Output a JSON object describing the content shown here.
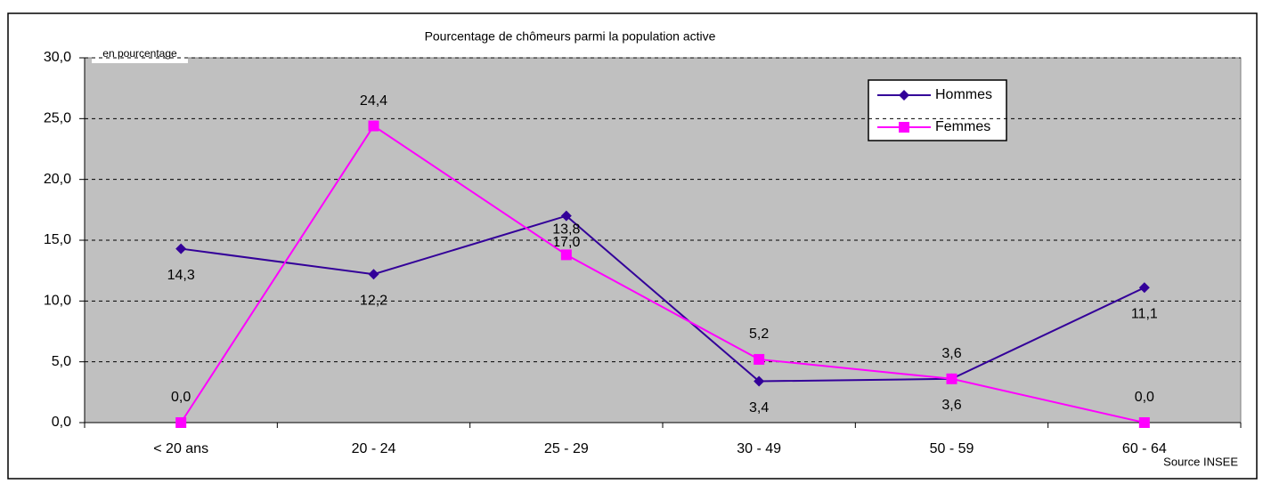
{
  "chart_data": {
    "type": "line",
    "title": "Pourcentage de chômeurs parmi la population active",
    "y_axis_label": "en pourcentage",
    "source": "Source INSEE",
    "categories": [
      "< 20 ans",
      "20 - 24",
      "25 - 29",
      "30 - 49",
      "50 - 59",
      "60 - 64"
    ],
    "series": [
      {
        "name": "Hommes",
        "color": "#330099",
        "marker": "diamond",
        "values": [
          14.3,
          12.2,
          17.0,
          3.4,
          3.6,
          11.1
        ],
        "value_labels": [
          "14,3",
          "12,2",
          "17,0",
          "3,4",
          "3,6",
          "11,1"
        ]
      },
      {
        "name": "Femmes",
        "color": "#ff00ff",
        "marker": "square",
        "values": [
          0.0,
          24.4,
          13.8,
          5.2,
          3.6,
          0.0
        ],
        "value_labels": [
          "0,0",
          "24,4",
          "13,8",
          "5,2",
          "3,6",
          "0,0"
        ]
      }
    ],
    "ylim": [
      0,
      30
    ],
    "yticks": [
      {
        "value": 0,
        "label": "0,0"
      },
      {
        "value": 5,
        "label": "5,0"
      },
      {
        "value": 10,
        "label": "10,0"
      },
      {
        "value": 15,
        "label": "15,0"
      },
      {
        "value": 20,
        "label": "20,0"
      },
      {
        "value": 25,
        "label": "25,0"
      },
      {
        "value": 30,
        "label": "30,0"
      }
    ],
    "grid": true
  }
}
